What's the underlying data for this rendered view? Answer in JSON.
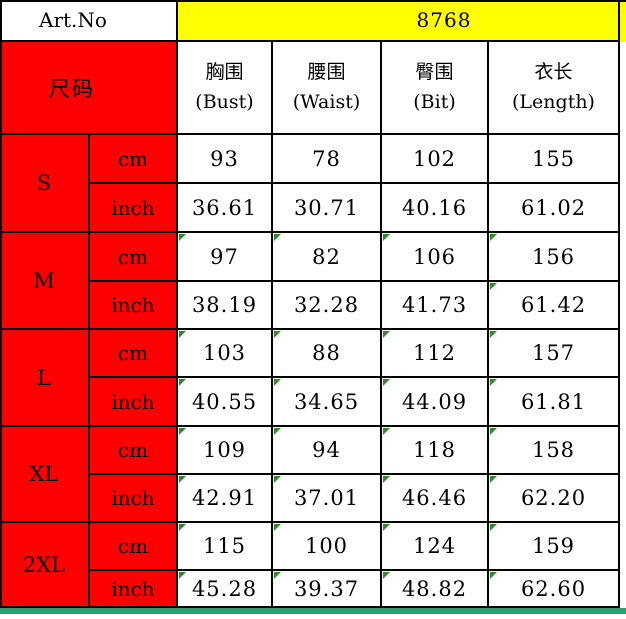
{
  "art": {
    "label": "Art.No",
    "value": "8768"
  },
  "size_header": "尺码",
  "columns": [
    {
      "zh": "胸围",
      "en": "(Bust)"
    },
    {
      "zh": "腰围",
      "en": "(Waist)"
    },
    {
      "zh": "臀围",
      "en": "(Bit)"
    },
    {
      "zh": "衣长",
      "en": "(Length)"
    }
  ],
  "unit_labels": {
    "cm": "cm",
    "inch": "inch"
  },
  "sizes": [
    {
      "label": "S",
      "cm": [
        "93",
        "78",
        "102",
        "155"
      ],
      "inch": [
        "36.61",
        "30.71",
        "40.16",
        "61.02"
      ],
      "cm_flags": [
        false,
        false,
        false,
        false
      ],
      "inch_flags": [
        false,
        false,
        false,
        false
      ]
    },
    {
      "label": "M",
      "cm": [
        "97",
        "82",
        "106",
        "156"
      ],
      "inch": [
        "38.19",
        "32.28",
        "41.73",
        "61.42"
      ],
      "cm_flags": [
        true,
        true,
        true,
        true
      ],
      "inch_flags": [
        false,
        false,
        false,
        true
      ]
    },
    {
      "label": "L",
      "cm": [
        "103",
        "88",
        "112",
        "157"
      ],
      "inch": [
        "40.55",
        "34.65",
        "44.09",
        "61.81"
      ],
      "cm_flags": [
        true,
        true,
        true,
        true
      ],
      "inch_flags": [
        true,
        true,
        true,
        true
      ]
    },
    {
      "label": "XL",
      "cm": [
        "109",
        "94",
        "118",
        "158"
      ],
      "inch": [
        "42.91",
        "37.01",
        "46.46",
        "62.20"
      ],
      "cm_flags": [
        true,
        true,
        true,
        true
      ],
      "inch_flags": [
        true,
        true,
        true,
        true
      ]
    },
    {
      "label": "2XL",
      "cm": [
        "115",
        "100",
        "124",
        "159"
      ],
      "inch": [
        "45.28",
        "39.37",
        "48.82",
        "62.60"
      ],
      "cm_flags": [
        true,
        true,
        true,
        true
      ],
      "inch_flags": [
        true,
        true,
        true,
        true
      ]
    }
  ],
  "colors": {
    "header_red": "#ff0000",
    "art_yellow": "#ffff00",
    "flag_green": "#2d8c28",
    "bottom_strip_green": "#2a9d72",
    "border_black": "#000000"
  }
}
